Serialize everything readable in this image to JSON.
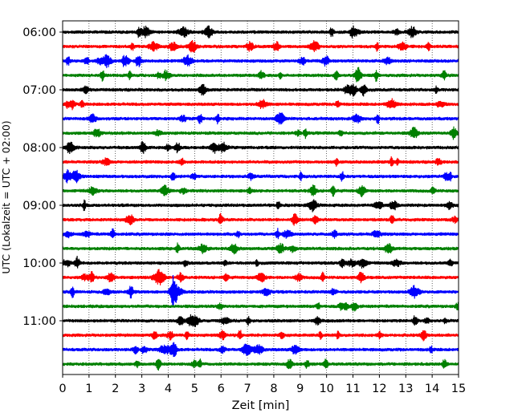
{
  "chart_data": {
    "type": "line",
    "title": "",
    "xlabel": "Zeit  [min]",
    "ylabel": "UTC (Lokalzeit = UTC + 02:00)",
    "xlim": [
      0,
      15
    ],
    "x_ticks": [
      "0",
      "1",
      "2",
      "3",
      "4",
      "5",
      "6",
      "7",
      "8",
      "9",
      "10",
      "11",
      "12",
      "13",
      "14",
      "15"
    ],
    "y_ticks": [
      "06:00",
      "07:00",
      "08:00",
      "09:00",
      "10:00",
      "11:00"
    ],
    "grid": "vertical dotted",
    "trace_colors": [
      "#000000",
      "#ff0000",
      "#0000ff",
      "#008000"
    ],
    "traces_per_hour": 4,
    "series": [
      {
        "start": "06:00",
        "color": "#000000"
      },
      {
        "start": "06:15",
        "color": "#ff0000"
      },
      {
        "start": "06:30",
        "color": "#0000ff"
      },
      {
        "start": "06:45",
        "color": "#008000"
      },
      {
        "start": "07:00",
        "color": "#000000"
      },
      {
        "start": "07:15",
        "color": "#ff0000"
      },
      {
        "start": "07:30",
        "color": "#0000ff"
      },
      {
        "start": "07:45",
        "color": "#008000"
      },
      {
        "start": "08:00",
        "color": "#000000"
      },
      {
        "start": "08:15",
        "color": "#ff0000"
      },
      {
        "start": "08:30",
        "color": "#0000ff"
      },
      {
        "start": "08:45",
        "color": "#008000"
      },
      {
        "start": "09:00",
        "color": "#000000"
      },
      {
        "start": "09:15",
        "color": "#ff0000"
      },
      {
        "start": "09:30",
        "color": "#0000ff"
      },
      {
        "start": "09:45",
        "color": "#008000"
      },
      {
        "start": "10:00",
        "color": "#000000"
      },
      {
        "start": "10:15",
        "color": "#ff0000"
      },
      {
        "start": "10:30",
        "color": "#0000ff"
      },
      {
        "start": "10:45",
        "color": "#008000"
      },
      {
        "start": "11:00",
        "color": "#000000"
      },
      {
        "start": "11:15",
        "color": "#ff0000"
      },
      {
        "start": "11:30",
        "color": "#0000ff"
      },
      {
        "start": "11:45",
        "color": "#008000"
      }
    ]
  }
}
